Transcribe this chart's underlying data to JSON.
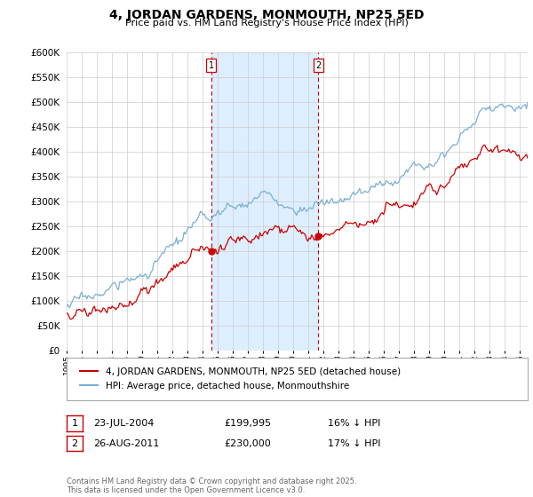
{
  "title": "4, JORDAN GARDENS, MONMOUTH, NP25 5ED",
  "subtitle": "Price paid vs. HM Land Registry's House Price Index (HPI)",
  "legend_line1": "4, JORDAN GARDENS, MONMOUTH, NP25 5ED (detached house)",
  "legend_line2": "HPI: Average price, detached house, Monmouthshire",
  "annotation1_label": "1",
  "annotation1_date": "23-JUL-2004",
  "annotation1_price": "£199,995",
  "annotation1_hpi": "16% ↓ HPI",
  "annotation1_year": 2004.56,
  "annotation1_value": 199995,
  "annotation2_label": "2",
  "annotation2_date": "26-AUG-2011",
  "annotation2_price": "£230,000",
  "annotation2_hpi": "17% ↓ HPI",
  "annotation2_year": 2011.65,
  "annotation2_value": 230000,
  "red_line_color": "#cc0000",
  "blue_line_color": "#7ab0d4",
  "shaded_region_color": "#ddeeff",
  "vline_color": "#cc0000",
  "footer": "Contains HM Land Registry data © Crown copyright and database right 2025.\nThis data is licensed under the Open Government Licence v3.0.",
  "ylim": [
    0,
    600000
  ],
  "yticks": [
    0,
    50000,
    100000,
    150000,
    200000,
    250000,
    300000,
    350000,
    400000,
    450000,
    500000,
    550000,
    600000
  ],
  "background_color": "#ffffff",
  "plot_bg_color": "#ffffff"
}
